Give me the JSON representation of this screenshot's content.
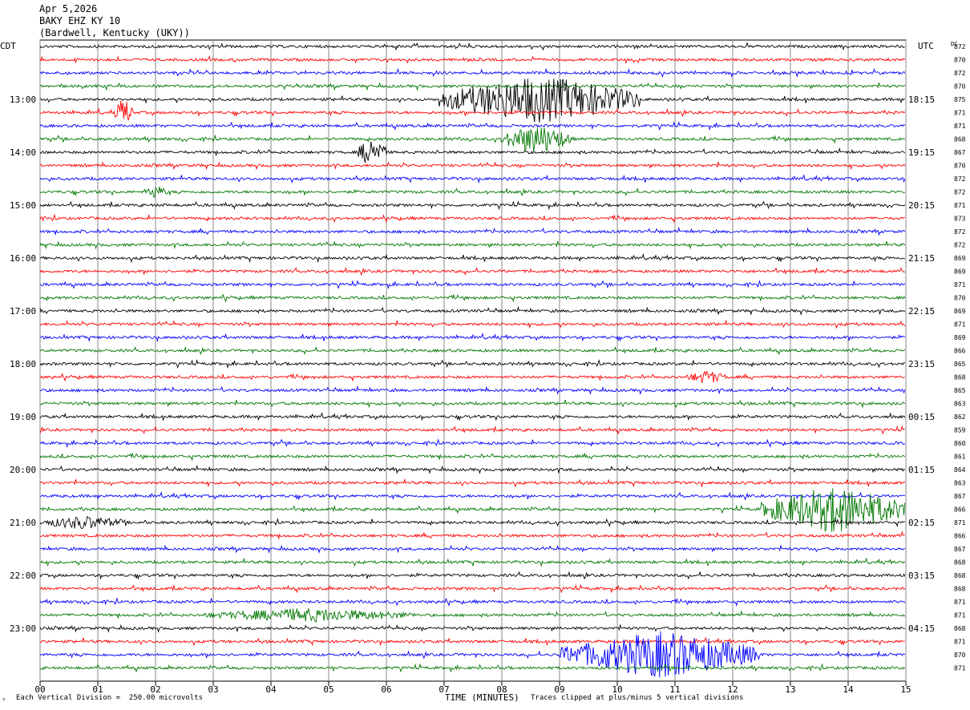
{
  "header": {
    "date": "Apr 5,2026",
    "station": "BAKY EHZ KY 10",
    "location": "(Bardwell, Kentucky (UKY))"
  },
  "left_tz": "CDT",
  "right_tz": "UTC",
  "dc_label": "DC",
  "chart_data": {
    "type": "line",
    "title": "",
    "xlabel": "TIME (MINUTES)",
    "xlim": [
      0,
      15
    ],
    "x_ticks": [
      "00",
      "01",
      "02",
      "03",
      "04",
      "05",
      "06",
      "07",
      "08",
      "09",
      "10",
      "11",
      "12",
      "13",
      "14",
      "15"
    ],
    "row_count": 48,
    "trace_colors": [
      "#000000",
      "#ff0000",
      "#0000ff",
      "#007700"
    ],
    "left_hour_labels": [
      "13:00",
      "14:00",
      "15:00",
      "16:00",
      "17:00",
      "18:00",
      "19:00",
      "20:00",
      "21:00",
      "22:00",
      "23:00"
    ],
    "right_hour_labels": [
      "18:15",
      "19:15",
      "20:15",
      "21:15",
      "22:15",
      "23:15",
      "00:15",
      "01:15",
      "02:15",
      "03:15",
      "04:15"
    ],
    "dc_offsets": [
      "872",
      "870",
      "872",
      "870",
      "875",
      "871",
      "871",
      "868",
      "867",
      "870",
      "872",
      "872",
      "871",
      "873",
      "872",
      "872",
      "869",
      "869",
      "871",
      "870",
      "869",
      "871",
      "869",
      "866",
      "865",
      "868",
      "865",
      "863",
      "862",
      "859",
      "860",
      "861",
      "864",
      "863",
      "867",
      "866",
      "871",
      "866",
      "867",
      "868",
      "868",
      "868",
      "871",
      "871",
      "868",
      "871",
      "870",
      "871"
    ],
    "events": [
      {
        "row": 4,
        "start_min": 6.9,
        "end_min": 10.4,
        "amplitude": "very large"
      },
      {
        "row": 5,
        "start_min": 1.3,
        "end_min": 1.6,
        "amplitude": "large"
      },
      {
        "row": 7,
        "start_min": 8.0,
        "end_min": 9.2,
        "amplitude": "large"
      },
      {
        "row": 8,
        "start_min": 5.5,
        "end_min": 6.0,
        "amplitude": "large"
      },
      {
        "row": 11,
        "start_min": 1.8,
        "end_min": 2.2,
        "amplitude": "medium"
      },
      {
        "row": 25,
        "start_min": 11.2,
        "end_min": 11.9,
        "amplitude": "medium"
      },
      {
        "row": 35,
        "start_min": 12.5,
        "end_min": 15.0,
        "amplitude": "very large"
      },
      {
        "row": 36,
        "start_min": 0.0,
        "end_min": 1.5,
        "amplitude": "medium"
      },
      {
        "row": 43,
        "start_min": 2.8,
        "end_min": 6.5,
        "amplitude": "medium"
      },
      {
        "row": 46,
        "start_min": 9.0,
        "end_min": 12.5,
        "amplitude": "very large"
      }
    ]
  },
  "footer": {
    "scale_note": "Each Vertical Division =  250.00 microvolts",
    "clip_note": "Traces clipped at plus/minus 5 vertical divisions"
  }
}
